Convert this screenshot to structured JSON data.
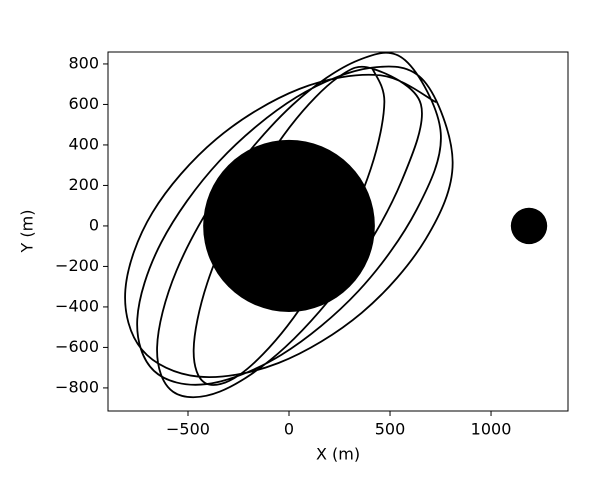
{
  "chart_data": {
    "type": "line",
    "xlabel": "X (m)",
    "ylabel": "Y (m)",
    "xlim": [
      -896,
      1381
    ],
    "ylim": [
      -914,
      859
    ],
    "xticks": [
      {
        "value": -500,
        "label": "−500"
      },
      0,
      500,
      1000
    ],
    "yticks": [
      {
        "value": -800,
        "label": "−800"
      },
      {
        "value": -600,
        "label": "−600"
      },
      {
        "value": -400,
        "label": "−400"
      },
      {
        "value": -200,
        "label": "−200"
      },
      0,
      200,
      400,
      600,
      800
    ],
    "series": [
      {
        "color": "#000000",
        "x": [
          728,
          450,
          52,
          -360,
          -676,
          -810,
          -728,
          -450,
          -52,
          360,
          676,
          810,
          668,
          407,
          37,
          -344,
          -632,
          -751,
          -668,
          -407,
          -37,
          344,
          632,
          751,
          574,
          342,
          18,
          -311,
          -557,
          -653,
          -574,
          -342,
          -18,
          311,
          557,
          653,
          413,
          243,
          8,
          -230,
          -405,
          -472,
          -413,
          -243,
          -8,
          230,
          405,
          472,
          413
        ],
        "y": [
          611,
          744,
          677,
          429,
          66,
          -315,
          -611,
          -744,
          -677,
          -429,
          -66,
          315,
          716,
          781,
          636,
          321,
          -81,
          -460,
          -716,
          -781,
          -636,
          -321,
          81,
          460,
          819,
          818,
          598,
          218,
          -221,
          -600,
          -819,
          -818,
          -598,
          -218,
          221,
          600,
          777,
          734,
          494,
          122,
          -283,
          -612,
          -777,
          -734,
          -494,
          -122,
          283,
          612,
          777
        ]
      }
    ],
    "circles": [
      {
        "x": 0,
        "y": 0,
        "r": 425,
        "color": "#000000"
      },
      {
        "x": 1188,
        "y": 0,
        "r": 90,
        "color": "#000000"
      }
    ]
  }
}
